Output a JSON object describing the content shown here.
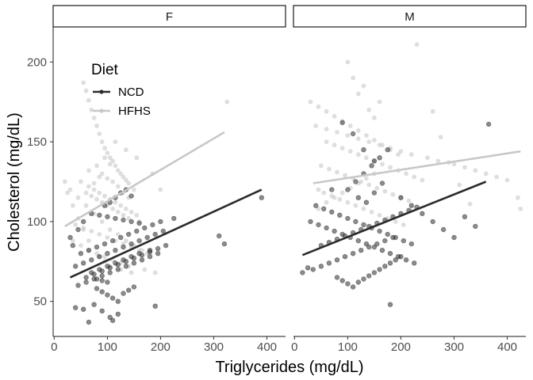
{
  "chart_data": {
    "type": "scatter",
    "xlabel": "Triglycerides (mg/dL)",
    "ylabel": "Cholesterol (mg/dL)",
    "xlim": [
      -2,
      435
    ],
    "ylim": [
      28,
      222
    ],
    "xticks": [
      0,
      100,
      200,
      300,
      400
    ],
    "yticks": [
      50,
      100,
      150,
      200
    ],
    "x_tick_labels": [
      "0",
      "100",
      "200",
      "300",
      "400"
    ],
    "y_tick_labels": [
      "50",
      "100",
      "150",
      "200"
    ],
    "grid": false,
    "legend": {
      "title": "Diet",
      "placement": "top-left",
      "entries": [
        {
          "label": "NCD",
          "color": "#2b2b2b"
        },
        {
          "label": "HFHS",
          "color": "#c8c8c8"
        }
      ]
    },
    "colors": {
      "NCD": "#2b2b2b",
      "HFHS": "#c8c8c8"
    },
    "panels": [
      {
        "label": "F",
        "lines": [
          {
            "group": "HFHS",
            "x": [
              20,
              320
            ],
            "y": [
              97,
              156
            ]
          },
          {
            "group": "NCD",
            "x": [
              30,
              390
            ],
            "y": [
              65,
              120
            ]
          }
        ],
        "points": [
          {
            "group": "HFHS",
            "x": [
              55,
              60,
              65,
              70,
              75,
              80,
              85,
              90,
              95,
              100,
              105,
              110,
              115,
              120,
              125,
              130,
              135,
              140,
              150,
              60,
              70,
              80,
              90,
              100,
              110,
              120,
              130,
              140,
              160,
              50,
              65,
              75,
              85,
              95,
              105,
              115,
              125,
              135,
              145,
              155,
              40,
              55,
              70,
              85,
              100,
              115,
              130,
              145,
              160,
              175,
              30,
              45,
              60,
              75,
              90,
              105,
              120,
              135,
              150,
              165,
              35,
              50,
              65,
              80,
              95,
              110,
              125,
              140,
              170,
              190,
              20,
              25,
              35,
              45,
              55,
              65,
              85,
              95,
              105,
              125,
              145,
              80,
              90,
              100,
              110,
              120,
              130,
              140,
              95,
              105,
              85,
              75,
              65,
              115,
              135,
              155,
              185,
              200,
              325
            ],
            "y": [
              187,
              182,
              176,
              170,
              165,
              160,
              155,
              150,
              146,
              143,
              140,
              138,
              135,
              132,
              130,
              128,
              126,
              124,
              120,
              118,
              116,
              114,
              112,
              110,
              108,
              106,
              104,
              102,
              100,
              125,
              122,
              120,
              118,
              116,
              114,
              112,
              110,
              108,
              106,
              104,
              98,
              96,
              94,
              92,
              90,
              88,
              86,
              84,
              82,
              80,
              120,
              115,
              110,
              105,
              100,
              95,
              92,
              88,
              85,
              82,
              88,
              85,
              82,
              80,
              78,
              76,
              74,
              72,
              70,
              68,
              125,
              118,
              110,
              102,
              95,
              88,
              78,
              75,
              72,
              70,
              68,
              135,
              130,
              127,
              125,
              122,
              118,
              115,
              140,
              136,
              128,
              124,
              132,
              150,
              145,
              140,
              130,
              120,
              175
            ]
          },
          {
            "group": "NCD",
            "x": [
              40,
              55,
              70,
              85,
              100,
              115,
              130,
              145,
              160,
              175,
              190,
              205,
              60,
              75,
              90,
              105,
              120,
              135,
              150,
              165,
              180,
              195,
              210,
              50,
              65,
              80,
              95,
              110,
              125,
              140,
              155,
              170,
              185,
              200,
              225,
              45,
              60,
              75,
              90,
              105,
              120,
              135,
              150,
              165,
              180,
              195,
              30,
              35,
              45,
              55,
              70,
              85,
              100,
              115,
              130,
              145,
              160,
              80,
              90,
              100,
              110,
              120,
              130,
              140,
              150,
              95,
              105,
              115,
              125,
              135,
              145,
              70,
              85,
              100,
              115,
              130,
              145,
              160,
              180,
              190,
              310,
              320,
              390,
              40,
              55,
              65,
              75,
              90,
              105,
              120,
              110,
              100,
              90,
              80
            ],
            "y": [
              72,
              74,
              76,
              78,
              80,
              82,
              84,
              86,
              88,
              90,
              92,
              94,
              65,
              67,
              69,
              71,
              73,
              75,
              77,
              79,
              81,
              83,
              85,
              80,
              82,
              84,
              86,
              88,
              90,
              92,
              94,
              96,
              98,
              100,
              102,
              60,
              62,
              64,
              66,
              68,
              70,
              72,
              74,
              76,
              78,
              80,
              90,
              85,
              95,
              100,
              105,
              104,
              103,
              102,
              101,
              100,
              99,
              58,
              56,
              54,
              52,
              50,
              55,
              57,
              59,
              110,
              112,
              115,
              118,
              120,
              116,
              68,
              70,
              72,
              74,
              76,
              78,
              80,
              82,
              47,
              91,
              86,
              115,
              46,
              45,
              37,
              48,
              44,
              40,
              42,
              38,
              62,
              63,
              64
            ]
          }
        ]
      },
      {
        "label": "M",
        "lines": [
          {
            "group": "HFHS",
            "x": [
              35,
              425
            ],
            "y": [
              124,
              144
            ]
          },
          {
            "group": "NCD",
            "x": [
              15,
              360
            ],
            "y": [
              79,
              125
            ]
          }
        ],
        "points": [
          {
            "group": "HFHS",
            "x": [
              60,
              75,
              90,
              105,
              120,
              135,
              150,
              165,
              180,
              195,
              210,
              225,
              240,
              50,
              65,
              80,
              95,
              110,
              125,
              140,
              155,
              170,
              185,
              200,
              215,
              45,
              55,
              70,
              85,
              100,
              115,
              130,
              145,
              160,
              175,
              190,
              205,
              40,
              60,
              80,
              100,
              120,
              140,
              160,
              180,
              200,
              220,
              250,
              270,
              300,
              320,
              340,
              360,
              380,
              400,
              30,
              45,
              60,
              75,
              90,
              105,
              120,
              135,
              150,
              165,
              180,
              195,
              100,
              110,
              120,
              130,
              140,
              150,
              160,
              230,
              260,
              275,
              290,
              310,
              330,
              420,
              425,
              45,
              60,
              75,
              90,
              105,
              120,
              135,
              150
            ],
            "y": [
              150,
              148,
              146,
              144,
              142,
              140,
              138,
              136,
              134,
              132,
              130,
              128,
              126,
              135,
              133,
              131,
              129,
              127,
              125,
              123,
              121,
              119,
              117,
              115,
              113,
              120,
              118,
              116,
              114,
              112,
              110,
              108,
              106,
              104,
              102,
              100,
              98,
              160,
              158,
              156,
              154,
              152,
              150,
              148,
              146,
              144,
              142,
              140,
              138,
              136,
              134,
              132,
              130,
              128,
              126,
              175,
              172,
              169,
              166,
              163,
              160,
              157,
              154,
              151,
              148,
              145,
              142,
              200,
              190,
              180,
              185,
              170,
              165,
              175,
              211,
              169,
              153,
              137,
              123,
              111,
              115,
              108,
              108,
              112,
              115,
              118,
              121,
              124,
              127,
              130
            ]
          },
          {
            "group": "NCD",
            "x": [
              30,
              45,
              60,
              75,
              90,
              105,
              120,
              135,
              150,
              165,
              180,
              195,
              210,
              225,
              40,
              55,
              70,
              85,
              100,
              115,
              130,
              145,
              160,
              175,
              190,
              205,
              220,
              50,
              65,
              80,
              95,
              110,
              125,
              140,
              155,
              170,
              185,
              200,
              215,
              230,
              35,
              50,
              65,
              80,
              95,
              110,
              125,
              140,
              155,
              170,
              185,
              80,
              90,
              100,
              110,
              120,
              130,
              140,
              150,
              160,
              170,
              180,
              190,
              200,
              100,
              115,
              130,
              145,
              160,
              175,
              180,
              200,
              220,
              240,
              260,
              280,
              300,
              320,
              340,
              365,
              15,
              25,
              70,
              90,
              110,
              130,
              150,
              120,
              135,
              150,
              165
            ],
            "y": [
              100,
              98,
              96,
              94,
              92,
              90,
              88,
              86,
              84,
              82,
              80,
              78,
              76,
              74,
              110,
              108,
              106,
              104,
              102,
              100,
              98,
              96,
              94,
              92,
              90,
              88,
              86,
              85,
              87,
              89,
              91,
              93,
              95,
              97,
              99,
              101,
              103,
              105,
              107,
              109,
              70,
              72,
              74,
              76,
              78,
              80,
              82,
              84,
              86,
              88,
              90,
              65,
              63,
              61,
              59,
              62,
              64,
              66,
              68,
              70,
              72,
              74,
              76,
              78,
              120,
              125,
              130,
              135,
              140,
              145,
              48,
              115,
              110,
              105,
              100,
              95,
              90,
              103,
              97,
              161,
              68,
              71,
              120,
              162,
              155,
              145,
              138,
              115,
              112,
              118,
              124
            ]
          }
        ]
      }
    ]
  }
}
